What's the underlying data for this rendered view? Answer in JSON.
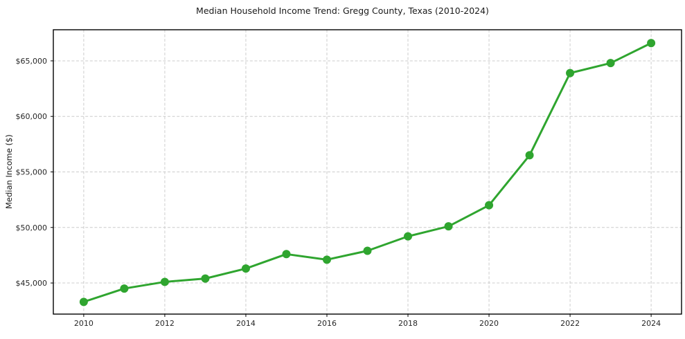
{
  "chart_data": {
    "type": "line",
    "title": "Median Household Income Trend: Gregg County, Texas (2010-2024)",
    "xlabel": "",
    "ylabel": "Median Income ($)",
    "x": [
      2010,
      2011,
      2012,
      2013,
      2014,
      2015,
      2016,
      2017,
      2018,
      2019,
      2020,
      2021,
      2022,
      2023,
      2024
    ],
    "values": [
      43300,
      44500,
      45100,
      45400,
      46300,
      47600,
      47100,
      47900,
      49200,
      50100,
      52000,
      56500,
      63900,
      64800,
      66600
    ],
    "x_ticks": [
      2010,
      2012,
      2014,
      2016,
      2018,
      2020,
      2022,
      2024
    ],
    "x_tick_labels": [
      "2010",
      "2012",
      "2014",
      "2016",
      "2018",
      "2020",
      "2022",
      "2024"
    ],
    "y_ticks": [
      45000,
      50000,
      55000,
      60000,
      65000
    ],
    "y_tick_labels": [
      "$45,000",
      "$50,000",
      "$55,000",
      "$60,000",
      "$65,000"
    ],
    "xlim": [
      2009.25,
      2024.75
    ],
    "ylim": [
      42200,
      67800
    ],
    "grid": true,
    "grid_style": "dashed",
    "legend": false,
    "line_color": "#2fa52f",
    "marker": "circle",
    "marker_color": "#2fa52f",
    "grid_color": "#cccccc",
    "axis_color": "#000000",
    "tick_label_color": "#262626",
    "title_color": "#1a1a1a",
    "background": "#ffffff"
  }
}
